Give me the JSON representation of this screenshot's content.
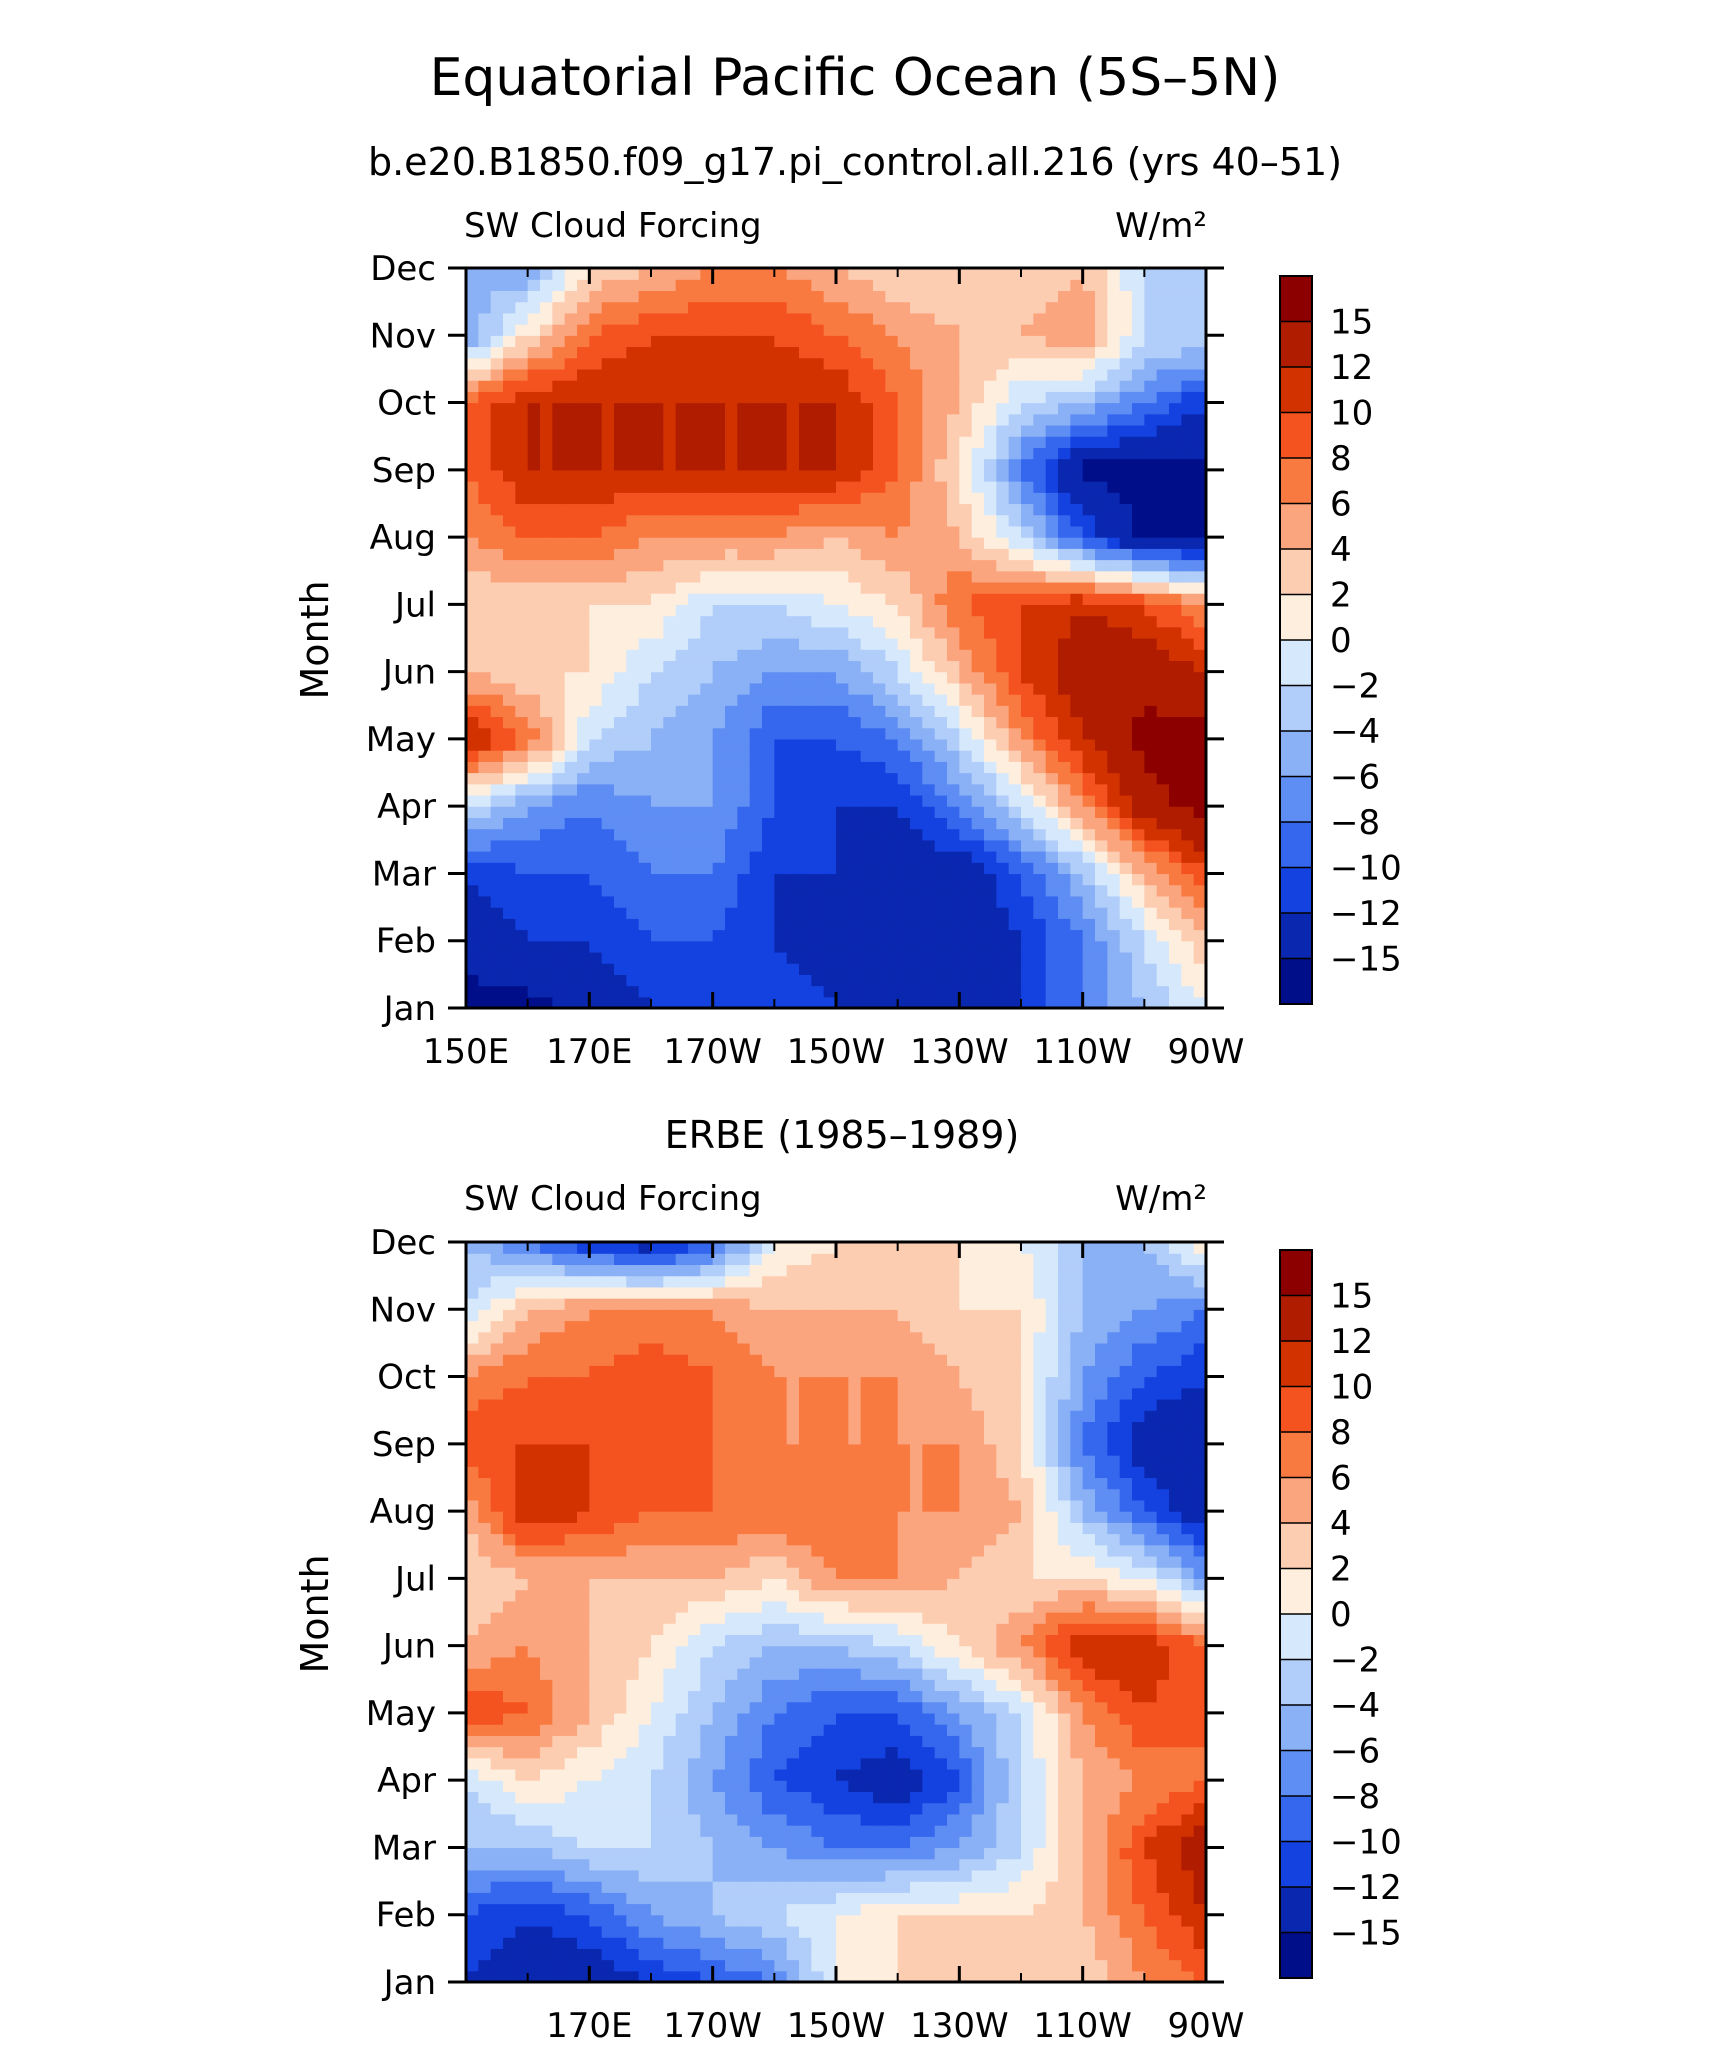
{
  "title": "Equatorial Pacific Ocean (5S–5N)",
  "subtitle": "b.e20.B1850.f09_g17.pi_control.all.216 (yrs 40–51)",
  "colorbar": {
    "labels": [
      "15",
      "12",
      "10",
      "8",
      "6",
      "4",
      "2",
      "0",
      "−2",
      "−4",
      "−6",
      "−8",
      "−10",
      "−12",
      "−15"
    ],
    "levels": [
      15,
      12,
      10,
      8,
      6,
      4,
      2,
      0,
      -2,
      -4,
      -6,
      -8,
      -10,
      -12,
      -15
    ],
    "colors": [
      "#8c0000",
      "#b01c00",
      "#d23200",
      "#f4521e",
      "#f87a40",
      "#fba57f",
      "#fdcdb2",
      "#feeede",
      "#d6e8fb",
      "#b1cdf9",
      "#8ab0f6",
      "#5e8df3",
      "#3466ee",
      "#1442e0",
      "#0a27b0",
      "#000e8a"
    ]
  },
  "chart_data": [
    {
      "type": "heatmap",
      "title": "",
      "left_label": "SW Cloud Forcing",
      "right_label": "W/m²",
      "ylabel": "Month",
      "xlabel": "",
      "xlim": [
        150,
        270
      ],
      "x_ticks": [
        150,
        170,
        190,
        210,
        230,
        250,
        270
      ],
      "x_tick_labels": [
        "150E",
        "170E",
        "170W",
        "150W",
        "130W",
        "110W",
        "90W"
      ],
      "y_tick_labels": [
        "Jan",
        "Feb",
        "Mar",
        "Apr",
        "May",
        "Jun",
        "Jul",
        "Aug",
        "Sep",
        "Oct",
        "Nov",
        "Dec"
      ],
      "longitudes": [
        150,
        160,
        170,
        180,
        190,
        200,
        210,
        220,
        230,
        240,
        250,
        260,
        270
      ],
      "values": [
        [
          -16,
          -16,
          -14,
          -12,
          -10,
          -10,
          -12,
          -14,
          -12,
          -12,
          -8,
          -4,
          0
        ],
        [
          -14,
          -12,
          -12,
          -10,
          -10,
          -12,
          -14,
          -14,
          -14,
          -12,
          -8,
          -2,
          4
        ],
        [
          -12,
          -10,
          -10,
          -8,
          -8,
          -12,
          -12,
          -14,
          -14,
          -10,
          -4,
          4,
          10
        ],
        [
          -2,
          -6,
          -8,
          -6,
          -6,
          -10,
          -12,
          -12,
          -8,
          -2,
          6,
          14,
          16
        ],
        [
          13,
          8,
          -2,
          -4,
          -6,
          -10,
          -10,
          -8,
          -2,
          6,
          12,
          16,
          16
        ],
        [
          4,
          2,
          2,
          -2,
          -4,
          -6,
          -6,
          -2,
          4,
          10,
          14,
          14,
          12
        ],
        [
          2,
          2,
          2,
          2,
          -2,
          -2,
          0,
          2,
          8,
          10,
          12,
          10,
          6
        ],
        [
          6,
          8,
          8,
          6,
          6,
          6,
          4,
          6,
          4,
          -2,
          -10,
          -16,
          -16
        ],
        [
          8,
          12,
          12,
          12,
          12,
          12,
          12,
          8,
          2,
          -8,
          -16,
          -16,
          -16
        ],
        [
          8,
          12,
          12,
          12,
          12,
          12,
          12,
          8,
          4,
          -2,
          -4,
          -8,
          -12
        ],
        [
          -6,
          2,
          8,
          10,
          10,
          10,
          8,
          6,
          4,
          4,
          6,
          -2,
          -2
        ],
        [
          -4,
          -6,
          2,
          4,
          6,
          6,
          4,
          2,
          2,
          2,
          4,
          -2,
          -4
        ]
      ]
    },
    {
      "type": "heatmap",
      "title": "ERBE (1985–1989)",
      "left_label": "SW Cloud Forcing",
      "right_label": "W/m²",
      "ylabel": "Month",
      "xlabel": "",
      "xlim": [
        150,
        270
      ],
      "x_ticks": [
        170,
        190,
        210,
        230,
        250,
        270
      ],
      "x_tick_labels": [
        "170E",
        "170W",
        "150W",
        "130W",
        "110W",
        "90W"
      ],
      "y_tick_labels": [
        "Jan",
        "Feb",
        "Mar",
        "Apr",
        "May",
        "Jun",
        "Jul",
        "Aug",
        "Sep",
        "Oct",
        "Nov",
        "Dec"
      ],
      "longitudes": [
        150,
        160,
        170,
        180,
        190,
        200,
        210,
        220,
        230,
        240,
        250,
        260,
        270
      ],
      "values": [
        [
          -12,
          -14,
          -14,
          -12,
          -10,
          -8,
          0,
          2,
          2,
          2,
          2,
          6,
          8
        ],
        [
          -10,
          -12,
          -10,
          -6,
          -4,
          -2,
          0,
          2,
          2,
          2,
          4,
          8,
          12
        ],
        [
          -4,
          -4,
          -2,
          -2,
          -4,
          -6,
          -8,
          -8,
          -6,
          -2,
          4,
          10,
          14
        ],
        [
          -2,
          2,
          0,
          -2,
          -6,
          -10,
          -12,
          -14,
          -10,
          -2,
          4,
          6,
          8
        ],
        [
          10,
          8,
          4,
          0,
          -4,
          -8,
          -10,
          -10,
          -6,
          -2,
          6,
          10,
          8
        ],
        [
          4,
          6,
          4,
          2,
          -2,
          -4,
          -4,
          -2,
          2,
          6,
          12,
          12,
          8
        ],
        [
          2,
          4,
          4,
          4,
          4,
          2,
          6,
          6,
          4,
          2,
          2,
          0,
          -6
        ],
        [
          4,
          12,
          10,
          8,
          8,
          8,
          8,
          6,
          6,
          4,
          -4,
          -10,
          -14
        ],
        [
          10,
          10,
          10,
          10,
          8,
          6,
          6,
          6,
          6,
          2,
          -8,
          -14,
          -14
        ],
        [
          6,
          8,
          8,
          10,
          8,
          6,
          6,
          6,
          4,
          2,
          -6,
          -10,
          -12
        ],
        [
          -2,
          4,
          6,
          6,
          6,
          4,
          4,
          4,
          2,
          2,
          -4,
          -6,
          -8
        ],
        [
          -4,
          -8,
          -12,
          -14,
          -10,
          0,
          2,
          2,
          2,
          0,
          -4,
          -4,
          2
        ]
      ]
    }
  ]
}
